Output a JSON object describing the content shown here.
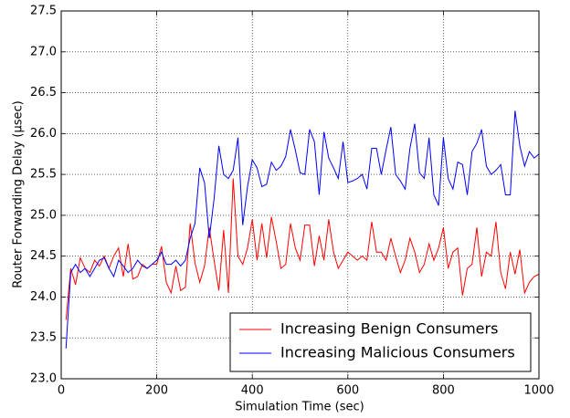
{
  "chart_data": {
    "type": "line",
    "xlabel": "Simulation Time (sec)",
    "ylabel": "Router Forwarding Delay (μsec)",
    "x": [
      10,
      20,
      30,
      40,
      50,
      60,
      70,
      80,
      90,
      100,
      110,
      120,
      130,
      140,
      150,
      160,
      170,
      180,
      190,
      200,
      210,
      220,
      230,
      240,
      250,
      260,
      270,
      280,
      290,
      300,
      310,
      320,
      330,
      340,
      350,
      360,
      370,
      380,
      390,
      400,
      410,
      420,
      430,
      440,
      450,
      460,
      470,
      480,
      490,
      500,
      510,
      520,
      530,
      540,
      550,
      560,
      570,
      580,
      590,
      600,
      610,
      620,
      630,
      640,
      650,
      660,
      670,
      680,
      690,
      700,
      710,
      720,
      730,
      740,
      750,
      760,
      770,
      780,
      790,
      800,
      810,
      820,
      830,
      840,
      850,
      860,
      870,
      880,
      890,
      900,
      910,
      920,
      930,
      940,
      950,
      960,
      970,
      980,
      990,
      1000
    ],
    "series": [
      {
        "name": "Increasing Benign Consumers",
        "color": "#ff0000",
        "values": [
          23.72,
          24.35,
          24.15,
          24.48,
          24.35,
          24.3,
          24.45,
          24.38,
          24.5,
          24.35,
          24.5,
          24.6,
          24.25,
          24.65,
          24.22,
          24.25,
          24.4,
          24.35,
          24.4,
          24.4,
          24.62,
          24.18,
          24.05,
          24.38,
          24.08,
          24.12,
          24.9,
          24.42,
          24.18,
          24.38,
          24.85,
          24.45,
          24.08,
          24.82,
          24.05,
          25.45,
          24.5,
          24.4,
          24.6,
          24.95,
          24.45,
          24.9,
          24.48,
          24.98,
          24.68,
          24.35,
          24.4,
          24.9,
          24.6,
          24.45,
          24.88,
          24.88,
          24.38,
          24.75,
          24.45,
          24.95,
          24.55,
          24.35,
          24.45,
          24.55,
          24.5,
          24.45,
          24.5,
          24.45,
          24.92,
          24.55,
          24.55,
          24.45,
          24.72,
          24.5,
          24.3,
          24.45,
          24.72,
          24.55,
          24.3,
          24.4,
          24.65,
          24.45,
          24.6,
          24.85,
          24.35,
          24.55,
          24.6,
          24.02,
          24.35,
          24.4,
          24.85,
          24.25,
          24.55,
          24.5,
          24.92,
          24.3,
          24.1,
          24.55,
          24.28,
          24.58,
          24.05,
          24.18,
          24.25,
          24.28
        ]
      },
      {
        "name": "Increasing Malicious Consumers",
        "color": "#0000ff",
        "values": [
          23.37,
          24.3,
          24.4,
          24.3,
          24.35,
          24.25,
          24.35,
          24.45,
          24.48,
          24.35,
          24.25,
          24.45,
          24.38,
          24.3,
          24.35,
          24.45,
          24.38,
          24.35,
          24.4,
          24.45,
          24.55,
          24.4,
          24.4,
          24.45,
          24.38,
          24.45,
          24.72,
          24.9,
          25.58,
          25.4,
          24.72,
          25.2,
          25.85,
          25.5,
          25.45,
          25.55,
          25.95,
          24.88,
          25.35,
          25.68,
          25.58,
          25.35,
          25.38,
          25.65,
          25.55,
          25.6,
          25.72,
          26.05,
          25.8,
          25.52,
          25.5,
          26.05,
          25.9,
          25.25,
          26.02,
          25.7,
          25.58,
          25.45,
          25.9,
          25.4,
          25.42,
          25.45,
          25.5,
          25.32,
          25.82,
          25.82,
          25.5,
          25.8,
          26.08,
          25.5,
          25.42,
          25.32,
          25.82,
          26.12,
          25.52,
          25.45,
          25.95,
          25.25,
          25.12,
          25.95,
          25.45,
          25.32,
          25.65,
          25.62,
          25.25,
          25.78,
          25.88,
          26.05,
          25.6,
          25.5,
          25.55,
          25.62,
          25.25,
          25.25,
          26.28,
          25.85,
          25.6,
          25.78,
          25.7,
          25.75
        ]
      }
    ],
    "xlim": [
      0,
      1000
    ],
    "xticks": [
      0,
      200,
      400,
      600,
      800,
      1000
    ],
    "ylim": [
      23.0,
      27.5
    ],
    "yticks": [
      {
        "value": 23.0,
        "label": "23.0"
      },
      {
        "value": 23.5,
        "label": "23.5"
      },
      {
        "value": 24.0,
        "label": "24.0"
      },
      {
        "value": 24.5,
        "label": "24.5"
      },
      {
        "value": 25.0,
        "label": "25.0"
      },
      {
        "value": 25.5,
        "label": "25.5"
      },
      {
        "value": 26.0,
        "label": "26.0"
      },
      {
        "value": 26.5,
        "label": "26.5"
      },
      {
        "value": 27.0,
        "label": "27.0"
      },
      {
        "value": 27.5,
        "label": "27.5"
      }
    ],
    "grid": true,
    "legend": "lower right"
  }
}
